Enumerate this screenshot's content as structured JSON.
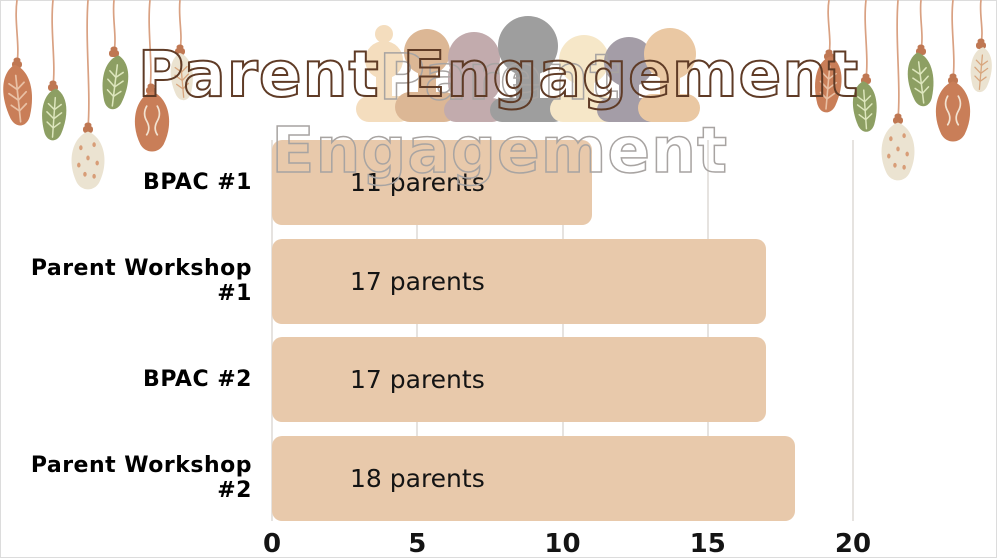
{
  "title": {
    "text": "Parent Engagement"
  },
  "chart_data": {
    "type": "bar",
    "orientation": "horizontal",
    "title": "Parent Engagement",
    "categories": [
      "BPAC #1",
      "Parent Workshop  #1",
      "BPAC #2",
      "Parent Workshop #2"
    ],
    "values": [
      11,
      17,
      17,
      18
    ],
    "bar_labels": [
      "11 parents",
      "17 parents",
      "17 parents",
      "18 parents"
    ],
    "x_ticks": [
      "0",
      "5",
      "10",
      "15",
      "20"
    ],
    "xlim": [
      0,
      20
    ],
    "grid": true,
    "legend": false,
    "bar_color": "#e8c9ab",
    "grid_color": "#e6e3e0",
    "text_color": "#141414",
    "category_label_color": "#000000"
  },
  "decorations": {
    "left_ornaments": [
      "terracotta-leaf",
      "green-leaf",
      "cream-ornament-dots",
      "green-leaf",
      "terracotta-ornament",
      "cream-leaf"
    ],
    "right_ornaments": [
      "terracotta-leaf",
      "green-leaf",
      "cream-ornament-dots",
      "green-leaf",
      "terracotta-ornament",
      "cream-leaf"
    ],
    "colors": {
      "terracotta": "#c97e58",
      "green": "#8d9f63",
      "cream": "#ebe3d1",
      "string": "#d9a182",
      "title_outline": "#5f3b26",
      "title_inner_line": "#a8a4a2"
    },
    "silhouette_colors": [
      "#f4ddbe",
      "#dcb795",
      "#c2abad",
      "#9e9e9e",
      "#f6e7c8",
      "#a49da7",
      "#eac8a3"
    ]
  }
}
